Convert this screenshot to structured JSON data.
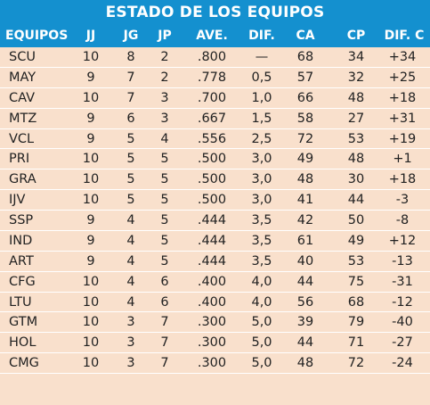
{
  "title": "ESTADO DE LOS EQUIPOS",
  "colors": {
    "header_bg": "#1490cf",
    "header_text": "#ffffff",
    "body_bg": "#f9e0cc",
    "row_divider": "#ffffff",
    "body_text": "#222222"
  },
  "headers": {
    "team": "EQUIPOS",
    "jj": "JJ",
    "jg": "JG",
    "jp": "JP",
    "ave": "AVE.",
    "dif": "DIF.",
    "ca": "CA",
    "cp": "CP",
    "difc": "DIF. C"
  },
  "rows": [
    {
      "team": "SCU",
      "jj": "10",
      "jg": "8",
      "jp": "2",
      "ave": ".800",
      "dif": "—",
      "ca": "68",
      "cp": "34",
      "difc": "+34"
    },
    {
      "team": "MAY",
      "jj": "9",
      "jg": "7",
      "jp": "2",
      "ave": ".778",
      "dif": "0,5",
      "ca": "57",
      "cp": "32",
      "difc": "+25"
    },
    {
      "team": "CAV",
      "jj": "10",
      "jg": "7",
      "jp": "3",
      "ave": ".700",
      "dif": "1,0",
      "ca": "66",
      "cp": "48",
      "difc": "+18"
    },
    {
      "team": "MTZ",
      "jj": "9",
      "jg": "6",
      "jp": "3",
      "ave": ".667",
      "dif": "1,5",
      "ca": "58",
      "cp": "27",
      "difc": "+31"
    },
    {
      "team": "VCL",
      "jj": "9",
      "jg": "5",
      "jp": "4",
      "ave": ".556",
      "dif": "2,5",
      "ca": "72",
      "cp": "53",
      "difc": "+19"
    },
    {
      "team": "PRI",
      "jj": "10",
      "jg": "5",
      "jp": "5",
      "ave": ".500",
      "dif": "3,0",
      "ca": "49",
      "cp": "48",
      "difc": "+1"
    },
    {
      "team": "GRA",
      "jj": "10",
      "jg": "5",
      "jp": "5",
      "ave": ".500",
      "dif": "3,0",
      "ca": "48",
      "cp": "30",
      "difc": "+18"
    },
    {
      "team": "IJV",
      "jj": "10",
      "jg": "5",
      "jp": "5",
      "ave": ".500",
      "dif": "3,0",
      "ca": "41",
      "cp": "44",
      "difc": "-3"
    },
    {
      "team": "SSP",
      "jj": "9",
      "jg": "4",
      "jp": "5",
      "ave": ".444",
      "dif": "3,5",
      "ca": "42",
      "cp": "50",
      "difc": "-8"
    },
    {
      "team": "IND",
      "jj": "9",
      "jg": "4",
      "jp": "5",
      "ave": ".444",
      "dif": "3,5",
      "ca": "61",
      "cp": "49",
      "difc": "+12"
    },
    {
      "team": "ART",
      "jj": "9",
      "jg": "4",
      "jp": "5",
      "ave": ".444",
      "dif": "3,5",
      "ca": "40",
      "cp": "53",
      "difc": "-13"
    },
    {
      "team": "CFG",
      "jj": "10",
      "jg": "4",
      "jp": "6",
      "ave": ".400",
      "dif": "4,0",
      "ca": "44",
      "cp": "75",
      "difc": "-31"
    },
    {
      "team": "LTU",
      "jj": "10",
      "jg": "4",
      "jp": "6",
      "ave": ".400",
      "dif": "4,0",
      "ca": "56",
      "cp": "68",
      "difc": "-12"
    },
    {
      "team": "GTM",
      "jj": "10",
      "jg": "3",
      "jp": "7",
      "ave": ".300",
      "dif": "5,0",
      "ca": "39",
      "cp": "79",
      "difc": "-40"
    },
    {
      "team": "HOL",
      "jj": "10",
      "jg": "3",
      "jp": "7",
      "ave": ".300",
      "dif": "5,0",
      "ca": "44",
      "cp": "71",
      "difc": "-27"
    },
    {
      "team": "CMG",
      "jj": "10",
      "jg": "3",
      "jp": "7",
      "ave": ".300",
      "dif": "5,0",
      "ca": "48",
      "cp": "72",
      "difc": "-24"
    }
  ]
}
